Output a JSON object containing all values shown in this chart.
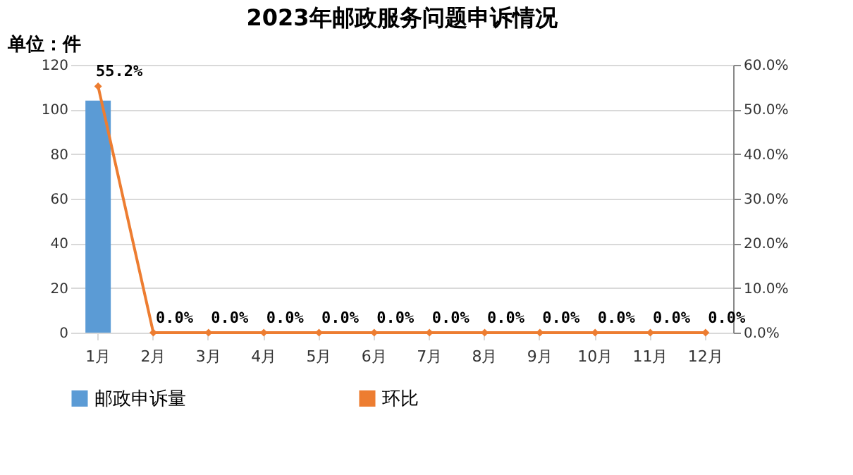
{
  "chart_data": {
    "type": "bar",
    "title": "2023年邮政服务问题申诉情况",
    "ylabel": "单位：件",
    "categories": [
      "1月",
      "2月",
      "3月",
      "4月",
      "5月",
      "6月",
      "7月",
      "8月",
      "9月",
      "10月",
      "11月",
      "12月"
    ],
    "series": [
      {
        "name": "邮政申诉量",
        "color": "#5b9bd5",
        "values": [
          104,
          0,
          0,
          0,
          0,
          0,
          0,
          0,
          0,
          0,
          0,
          0
        ]
      },
      {
        "name": "环比",
        "type": "line",
        "axis": "y2",
        "color": "#ed7d31",
        "marker": "diamond",
        "values": [
          55.2,
          0,
          0,
          0,
          0,
          0,
          0,
          0,
          0,
          0,
          0,
          0
        ],
        "value_labels": [
          "55.2%",
          "0.0%",
          "0.0%",
          "0.0%",
          "0.0%",
          "0.0%",
          "0.0%",
          "0.0%",
          "0.0%",
          "0.0%",
          "0.0%",
          "0.0%"
        ]
      }
    ],
    "ylim": [
      0,
      120
    ],
    "yticks": [
      0,
      20,
      40,
      60,
      80,
      100,
      120
    ],
    "y2lim": [
      0,
      60
    ],
    "y2ticks": [
      {
        "value": 0,
        "label": "0.0%"
      },
      {
        "value": 10,
        "label": "10.0%"
      },
      {
        "value": 20,
        "label": "20.0%"
      },
      {
        "value": 30,
        "label": "30.0%"
      },
      {
        "value": 40,
        "label": "40.0%"
      },
      {
        "value": 50,
        "label": "50.0%"
      },
      {
        "value": 60,
        "label": "60.0%"
      }
    ],
    "grid": "y",
    "legend": "bottom"
  }
}
